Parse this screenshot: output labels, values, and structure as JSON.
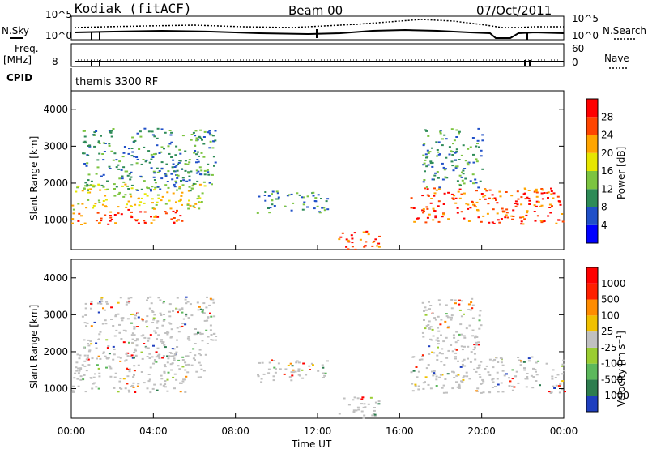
{
  "header": {
    "station": "Kodiak (fitACF)",
    "beam": "Beam 00",
    "date": "07/Oct/2011"
  },
  "panels": {
    "nsky_label": "N.Sky",
    "nsearch_label": "N.Search",
    "nsky_ticks": [
      "10^5",
      "10^0"
    ],
    "nsearch_ticks": [
      "10^5",
      "10^0"
    ],
    "freq_label": "Freq.",
    "freq_unit": "[MHz]",
    "freq_tick": "8",
    "nave_label": "Nave",
    "nave_ticks": [
      "60",
      "0"
    ],
    "cpid_label": "CPID",
    "cpid_text": "themis 3300 RF"
  },
  "chart_data": [
    {
      "type": "heatmap",
      "name": "power",
      "ylabel": "Slant Range [km]",
      "xlabel": "",
      "ylim": [
        200,
        4500
      ],
      "yticks": [
        "1000",
        "2000",
        "3000",
        "4000"
      ],
      "colorbar": {
        "label": "Power [dB]",
        "ticks": [
          "28",
          "24",
          "20",
          "16",
          "12",
          "8",
          "4"
        ],
        "colors": [
          "#0000ff",
          "#2050c8",
          "#2e8b57",
          "#7cc441",
          "#e6e600",
          "#ffa500",
          "#ff4500",
          "#ff0000"
        ]
      },
      "features": [
        {
          "x": [
            0.0,
            5.6
          ],
          "y": [
            900,
            1300
          ],
          "level": "high"
        },
        {
          "x": [
            0.0,
            6.5
          ],
          "y": [
            1300,
            2000
          ],
          "level": "medium"
        },
        {
          "x": [
            0.5,
            7.0
          ],
          "y": [
            1800,
            3500
          ],
          "level": "low"
        },
        {
          "x": [
            9.0,
            12.5
          ],
          "y": [
            1200,
            1800
          ],
          "level": "low"
        },
        {
          "x": [
            13.0,
            15.0
          ],
          "y": [
            200,
            800
          ],
          "level": "high"
        },
        {
          "x": [
            16.5,
            24.0
          ],
          "y": [
            900,
            1900
          ],
          "level": "high"
        },
        {
          "x": [
            17.0,
            20.0
          ],
          "y": [
            1900,
            3500
          ],
          "level": "low"
        }
      ]
    },
    {
      "type": "heatmap",
      "name": "velocity",
      "ylabel": "Slant Range [km]",
      "xlabel": "Time UT",
      "ylim": [
        200,
        4500
      ],
      "yticks": [
        "1000",
        "2000",
        "3000",
        "4000"
      ],
      "xticks": [
        "00:00",
        "04:00",
        "08:00",
        "12:00",
        "16:00",
        "20:00",
        "00:00"
      ],
      "colorbar": {
        "label": "Velocity [m s^-1]",
        "ticks": [
          "1000",
          "500",
          "100",
          "25",
          "-25",
          "-100",
          "-500",
          "-1000"
        ],
        "colors": [
          "#1f3fbf",
          "#2e7d4f",
          "#5cb85c",
          "#9acd32",
          "#c0c0c0",
          "#f0c000",
          "#ff8c00",
          "#ff2000",
          "#ff0000"
        ]
      }
    }
  ]
}
